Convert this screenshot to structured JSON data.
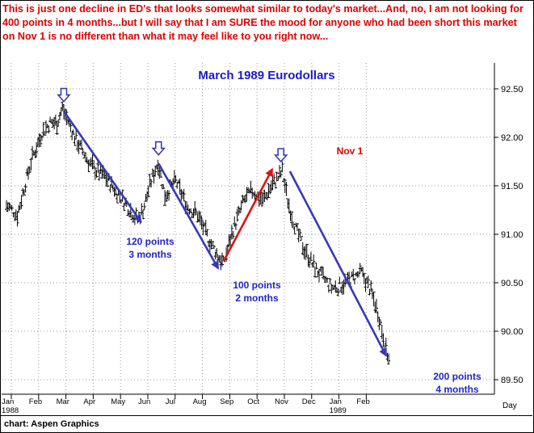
{
  "headline": "This is just one decline in ED's that looks somewhat similar to today's market...And, no, I am not looking for 400 points in 4 months...but I will say that I am SURE the mood for anyone who had been short this market on Nov 1 is no different than what it may feel like to you right now...",
  "credit": "chart: Aspen Graphics",
  "chart_data": {
    "type": "ohlc",
    "title": "March 1989 Eurodollars",
    "y_tick_labels": [
      "89.50",
      "90.00",
      "90.50",
      "91.00",
      "91.50",
      "92.00",
      "92.50"
    ],
    "y_ticks": [
      89.5,
      90.0,
      90.5,
      91.0,
      91.5,
      92.0,
      92.5
    ],
    "ylim": [
      89.27,
      92.88
    ],
    "x_axis_label": "Day",
    "x_axis_range": [
      0,
      14.16
    ],
    "x_month_labels": [
      {
        "label": "Jan",
        "pos": 0
      },
      {
        "label": "Feb",
        "pos": 1
      },
      {
        "label": "Mar",
        "pos": 2
      },
      {
        "label": "Apr",
        "pos": 3
      },
      {
        "label": "May",
        "pos": 4
      },
      {
        "label": "Jun",
        "pos": 5
      },
      {
        "label": "Jul",
        "pos": 6
      },
      {
        "label": "Aug",
        "pos": 7
      },
      {
        "label": "Sep",
        "pos": 8
      },
      {
        "label": "Oct",
        "pos": 9
      },
      {
        "label": "Nov",
        "pos": 10
      },
      {
        "label": "Dec",
        "pos": 11
      },
      {
        "label": "Jan",
        "pos": 12
      },
      {
        "label": "Feb",
        "pos": 13
      }
    ],
    "x_year_labels": [
      {
        "label": "1988",
        "pos": 0
      },
      {
        "label": "1989",
        "pos": 12
      }
    ],
    "grid": true,
    "price_path": [
      [
        0.0,
        91.3
      ],
      [
        0.4,
        91.2
      ],
      [
        0.9,
        91.75
      ],
      [
        1.3,
        92.05
      ],
      [
        1.6,
        92.15
      ],
      [
        1.85,
        92.15
      ],
      [
        2.05,
        92.3
      ],
      [
        2.2,
        92.2
      ],
      [
        2.5,
        92.0
      ],
      [
        2.8,
        91.85
      ],
      [
        3.0,
        91.75
      ],
      [
        3.3,
        91.65
      ],
      [
        3.6,
        91.6
      ],
      [
        4.0,
        91.45
      ],
      [
        4.4,
        91.3
      ],
      [
        4.8,
        91.15
      ],
      [
        5.0,
        91.25
      ],
      [
        5.3,
        91.55
      ],
      [
        5.55,
        91.75
      ],
      [
        5.8,
        91.4
      ],
      [
        6.2,
        91.55
      ],
      [
        6.6,
        91.3
      ],
      [
        7.0,
        91.2
      ],
      [
        7.4,
        90.95
      ],
      [
        7.7,
        90.8
      ],
      [
        7.95,
        90.7
      ],
      [
        8.3,
        91.05
      ],
      [
        8.7,
        91.35
      ],
      [
        9.0,
        91.45
      ],
      [
        9.4,
        91.35
      ],
      [
        9.7,
        91.5
      ],
      [
        10.0,
        91.6
      ],
      [
        10.1,
        91.65
      ],
      [
        10.3,
        91.35
      ],
      [
        10.6,
        91.05
      ],
      [
        10.9,
        90.85
      ],
      [
        11.3,
        90.65
      ],
      [
        11.6,
        90.55
      ],
      [
        11.9,
        90.45
      ],
      [
        12.1,
        90.45
      ],
      [
        12.4,
        90.5
      ],
      [
        12.7,
        90.55
      ],
      [
        13.0,
        90.6
      ],
      [
        13.3,
        90.45
      ],
      [
        13.6,
        90.2
      ],
      [
        13.8,
        89.95
      ],
      [
        14.0,
        89.7
      ]
    ],
    "annotations": [
      {
        "text": "120 points",
        "text2": "3 months",
        "color": "#2222cc"
      },
      {
        "text": "100 points",
        "text2": "2 months",
        "color": "#2222cc"
      },
      {
        "text": "Nov 1",
        "color": "#dd0000"
      },
      {
        "text": "200 points",
        "text2": "4 months",
        "color": "#2222cc"
      }
    ],
    "arrows": [
      {
        "from": [
          2.1,
          92.27
        ],
        "to": [
          4.92,
          91.13
        ],
        "color": "#3838b8"
      },
      {
        "from": [
          5.57,
          91.73
        ],
        "to": [
          7.75,
          90.65
        ],
        "color": "#3838b8"
      },
      {
        "from": [
          7.95,
          90.72
        ],
        "to": [
          9.73,
          91.67
        ],
        "color": "#dd1111"
      },
      {
        "from": [
          10.38,
          91.65
        ],
        "to": [
          13.9,
          89.75
        ],
        "color": "#3838b8"
      }
    ],
    "marker_arrows": [
      {
        "x": 2.1,
        "price": 92.32
      },
      {
        "x": 5.57,
        "price": 91.77
      },
      {
        "x": 10.05,
        "price": 91.7
      }
    ],
    "colors": {
      "bars": "#000000",
      "grid": "#999999",
      "title": "#1a1acc",
      "headline": "#e00000"
    }
  }
}
